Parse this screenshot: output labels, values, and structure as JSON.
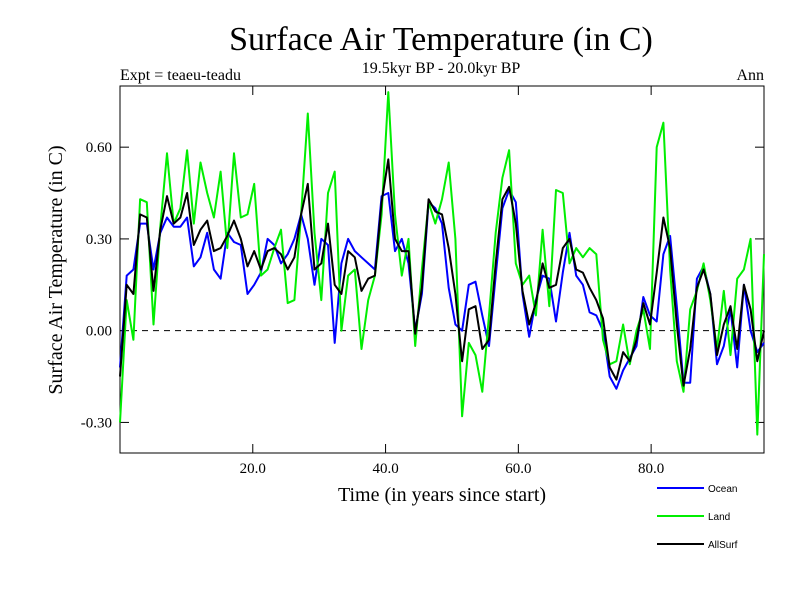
{
  "chart_data": {
    "type": "line",
    "title": "Surface Air Temperature (in C)",
    "subtitle": "19.5kyr BP - 20.0kyr BP",
    "left_label": "Expt = teaeu-teadu",
    "right_label": "Ann",
    "xlabel": "Time (in years since start)",
    "ylabel": "Surface Air Temperature (in C)",
    "xlim": [
      0,
      97
    ],
    "ylim": [
      -0.4,
      0.8
    ],
    "x_ticks": [
      20,
      40,
      60,
      80
    ],
    "x_tick_labels": [
      "20.0",
      "40.0",
      "60.0",
      "80.0"
    ],
    "y_ticks": [
      -0.3,
      0,
      0.3,
      0.6
    ],
    "y_tick_labels": [
      "-0.30",
      "0.00",
      "0.30",
      "0.60"
    ],
    "zero_line": "dashed",
    "legend_position": "bottom-right",
    "series": [
      {
        "name": "Ocean",
        "color": "#0000ff",
        "values": [
          -0.12,
          0.18,
          0.2,
          0.35,
          0.35,
          0.2,
          0.32,
          0.37,
          0.34,
          0.34,
          0.37,
          0.21,
          0.24,
          0.32,
          0.2,
          0.17,
          0.32,
          0.29,
          0.28,
          0.12,
          0.15,
          0.19,
          0.3,
          0.28,
          0.22,
          0.25,
          0.3,
          0.38,
          0.3,
          0.15,
          0.3,
          0.28,
          -0.04,
          0.22,
          0.3,
          0.26,
          0.24,
          0.22,
          0.2,
          0.44,
          0.45,
          0.26,
          0.3,
          0.22,
          0.0,
          0.12,
          0.42,
          0.4,
          0.35,
          0.14,
          0.02,
          0.0,
          0.15,
          0.16,
          0.05,
          -0.05,
          0.18,
          0.4,
          0.46,
          0.42,
          0.12,
          -0.02,
          0.1,
          0.18,
          0.17,
          0.03,
          0.19,
          0.32,
          0.18,
          0.15,
          0.06,
          0.05,
          0.0,
          -0.15,
          -0.19,
          -0.13,
          -0.09,
          -0.05,
          0.11,
          0.05,
          0.03,
          0.25,
          0.31,
          0.08,
          -0.17,
          -0.17,
          0.17,
          0.21,
          0.12,
          -0.11,
          -0.05,
          0.07,
          -0.12,
          0.15,
          0.0,
          -0.07,
          -0.04
        ]
      },
      {
        "name": "Land",
        "color": "#00ee00",
        "values": [
          -0.3,
          0.1,
          -0.03,
          0.43,
          0.42,
          0.02,
          0.34,
          0.58,
          0.35,
          0.4,
          0.59,
          0.35,
          0.55,
          0.45,
          0.37,
          0.52,
          0.27,
          0.58,
          0.37,
          0.38,
          0.48,
          0.18,
          0.2,
          0.27,
          0.33,
          0.09,
          0.1,
          0.38,
          0.71,
          0.32,
          0.1,
          0.45,
          0.52,
          0.0,
          0.18,
          0.2,
          -0.06,
          0.1,
          0.18,
          0.38,
          0.78,
          0.38,
          0.18,
          0.3,
          -0.05,
          0.2,
          0.42,
          0.35,
          0.43,
          0.55,
          0.3,
          -0.28,
          -0.04,
          -0.08,
          -0.2,
          0.05,
          0.32,
          0.5,
          0.59,
          0.22,
          0.15,
          0.18,
          0.05,
          0.33,
          0.08,
          0.46,
          0.45,
          0.22,
          0.27,
          0.24,
          0.27,
          0.25,
          -0.03,
          -0.11,
          -0.1,
          0.02,
          -0.11,
          0.0,
          0.07,
          -0.06,
          0.6,
          0.68,
          0.2,
          -0.1,
          -0.2,
          0.07,
          0.13,
          0.22,
          0.1,
          -0.06,
          0.13,
          -0.08,
          0.17,
          0.2,
          0.3,
          -0.34,
          0.25
        ]
      },
      {
        "name": "AllSurf",
        "color": "#000000",
        "values": [
          -0.15,
          0.15,
          0.12,
          0.38,
          0.37,
          0.13,
          0.33,
          0.44,
          0.35,
          0.37,
          0.45,
          0.28,
          0.33,
          0.36,
          0.26,
          0.27,
          0.31,
          0.36,
          0.3,
          0.21,
          0.26,
          0.2,
          0.26,
          0.27,
          0.25,
          0.2,
          0.24,
          0.38,
          0.48,
          0.2,
          0.22,
          0.35,
          0.15,
          0.12,
          0.26,
          0.24,
          0.13,
          0.17,
          0.18,
          0.42,
          0.56,
          0.3,
          0.26,
          0.26,
          -0.01,
          0.14,
          0.43,
          0.39,
          0.38,
          0.27,
          0.12,
          -0.1,
          0.07,
          0.08,
          -0.06,
          -0.03,
          0.22,
          0.43,
          0.47,
          0.35,
          0.13,
          0.02,
          0.09,
          0.22,
          0.14,
          0.15,
          0.27,
          0.3,
          0.2,
          0.19,
          0.14,
          0.1,
          0.04,
          -0.12,
          -0.16,
          -0.07,
          -0.1,
          -0.03,
          0.09,
          0.02,
          0.19,
          0.37,
          0.27,
          0.02,
          -0.18,
          -0.06,
          0.14,
          0.2,
          0.12,
          -0.08,
          0.02,
          0.08,
          -0.06,
          0.15,
          0.07,
          -0.1,
          0.0
        ]
      }
    ]
  }
}
